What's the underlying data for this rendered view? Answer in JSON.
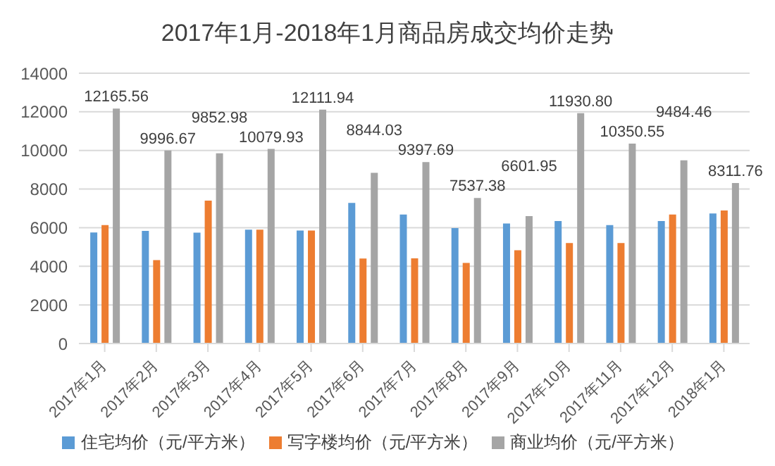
{
  "chart_data": {
    "type": "bar",
    "title": "2017年1月-2018年1月商品房成交均价走势",
    "categories": [
      "2017年1月",
      "2017年2月",
      "2017年3月",
      "2017年4月",
      "2017年5月",
      "2017年6月",
      "2017年7月",
      "2017年8月",
      "2017年9月",
      "2017年10月",
      "2017年11月",
      "2017年12月",
      "2018年1月"
    ],
    "series": [
      {
        "name": "住宅均价（元/平方米）",
        "color": "#5b9bd5",
        "values": [
          5750,
          5830,
          5740,
          5900,
          5850,
          7280,
          6680,
          5980,
          6220,
          6340,
          6130,
          6340,
          6740
        ]
      },
      {
        "name": "写字楼均价（元/平方米）",
        "color": "#ed7d31",
        "values": [
          6130,
          4320,
          7400,
          5900,
          5850,
          4400,
          4410,
          4170,
          4830,
          5200,
          5200,
          6680,
          6890
        ]
      },
      {
        "name": "商业均价（元/平方米）",
        "color": "#a5a5a5",
        "values": [
          12165.56,
          9996.67,
          9852.98,
          10079.93,
          12111.94,
          8844.03,
          9397.69,
          7537.38,
          6601.95,
          11930.8,
          10350.55,
          9484.46,
          8311.76
        ],
        "value_labels": [
          "12165.56",
          "9996.67",
          "9852.98",
          "10079.93",
          "12111.94",
          "8844.03",
          "9397.69",
          "7537.38",
          "6601.95",
          "11930.80",
          "10350.55",
          "9484.46",
          "8311.76"
        ]
      }
    ],
    "ylim": [
      0,
      14000
    ],
    "yticks": [
      0,
      2000,
      4000,
      6000,
      8000,
      10000,
      12000,
      14000
    ],
    "grid": "y",
    "legend": "bottom"
  }
}
